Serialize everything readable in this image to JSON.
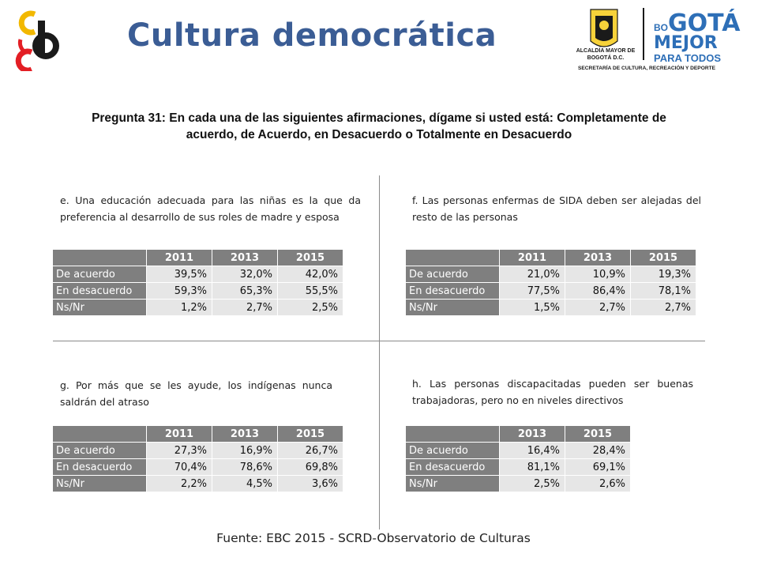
{
  "header": {
    "title": "Cultura democrática",
    "logo_alcaldia": "ALCALDÍA MAYOR DE BOGOTÁ D.C.",
    "logo_bogota_small": "BO",
    "logo_bogota_large": "GOTÁ",
    "logo_mejor": "MEJOR",
    "logo_para_todos": "PARA TODOS",
    "logo_secretaria": "SECRETARÍA DE CULTURA, RECREACIÓN Y DEPORTE"
  },
  "question": "Pregunta 31: En cada una de las siguientes afirmaciones, dígame si usted está: Completamente de acuerdo, de Acuerdo, en Desacuerdo o Totalmente en Desacuerdo",
  "panels": [
    {
      "statement": "e. Una educación adecuada para las niñas es la que da preferencia al desarrollo de sus roles de madre y esposa",
      "years": [
        "2011",
        "2013",
        "2015"
      ],
      "rows": [
        {
          "label": "De acuerdo",
          "values": [
            "39,5%",
            "32,0%",
            "42,0%"
          ]
        },
        {
          "label": "En desacuerdo",
          "values": [
            "59,3%",
            "65,3%",
            "55,5%"
          ]
        },
        {
          "label": "Ns/Nr",
          "values": [
            "1,2%",
            "2,7%",
            "2,5%"
          ]
        }
      ]
    },
    {
      "statement": "f. Las personas enfermas de SIDA deben ser alejadas del resto de las personas",
      "years": [
        "2011",
        "2013",
        "2015"
      ],
      "rows": [
        {
          "label": "De acuerdo",
          "values": [
            "21,0%",
            "10,9%",
            "19,3%"
          ]
        },
        {
          "label": "En desacuerdo",
          "values": [
            "77,5%",
            "86,4%",
            "78,1%"
          ]
        },
        {
          "label": "Ns/Nr",
          "values": [
            "1,5%",
            "2,7%",
            "2,7%"
          ]
        }
      ]
    },
    {
      "statement": "g. Por más que se les ayude, los indígenas nunca saldrán del atraso",
      "years": [
        "2011",
        "2013",
        "2015"
      ],
      "rows": [
        {
          "label": "De acuerdo",
          "values": [
            "27,3%",
            "16,9%",
            "26,7%"
          ]
        },
        {
          "label": "En desacuerdo",
          "values": [
            "70,4%",
            "78,6%",
            "69,8%"
          ]
        },
        {
          "label": "Ns/Nr",
          "values": [
            "2,2%",
            "4,5%",
            "3,6%"
          ]
        }
      ]
    },
    {
      "statement": "h. Las personas discapacitadas pueden ser buenas trabajadoras, pero no en niveles directivos",
      "years": [
        "2013",
        "2015"
      ],
      "rows": [
        {
          "label": "De acuerdo",
          "values": [
            "16,4%",
            "28,4%"
          ]
        },
        {
          "label": "En desacuerdo",
          "values": [
            "81,1%",
            "69,1%"
          ]
        },
        {
          "label": "Ns/Nr",
          "values": [
            "2,5%",
            "2,6%"
          ]
        }
      ]
    }
  ],
  "footer": "Fuente: EBC 2015 - SCRD-Observatorio de Culturas",
  "colors": {
    "title": "#3b5d95",
    "header_cell": "#7f7f7f",
    "value_cell": "#e6e6e6",
    "logo_yellow": "#f2b800",
    "logo_red": "#e31e24",
    "logo_black": "#1a1a1a",
    "bogota_blue": "#2e6fb7"
  }
}
